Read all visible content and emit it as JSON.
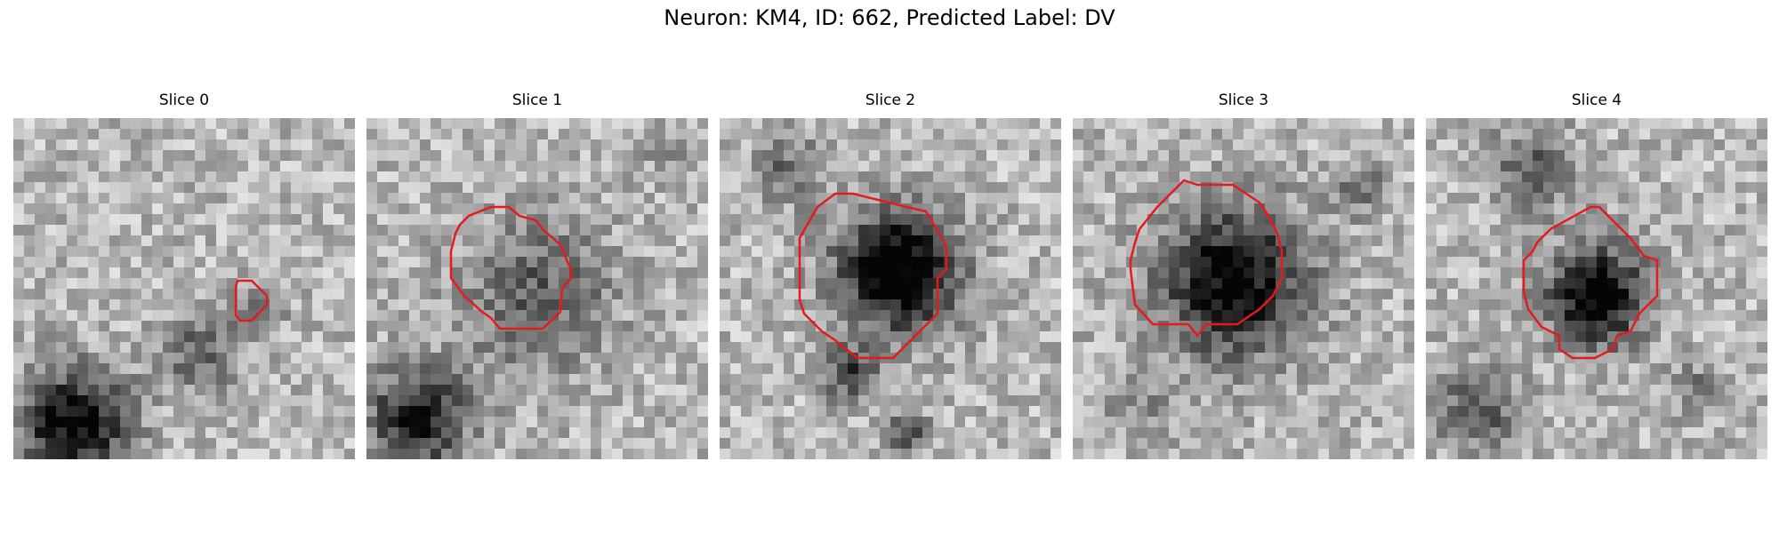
{
  "figure": {
    "title": "Neuron: KM4, ID: 662, Predicted Label: DV"
  },
  "contour_color": "#e41a1c",
  "panels": [
    {
      "title": "Slice 0"
    },
    {
      "title": "Slice 1"
    },
    {
      "title": "Slice 2"
    },
    {
      "title": "Slice 3"
    },
    {
      "title": "Slice 4"
    }
  ]
}
